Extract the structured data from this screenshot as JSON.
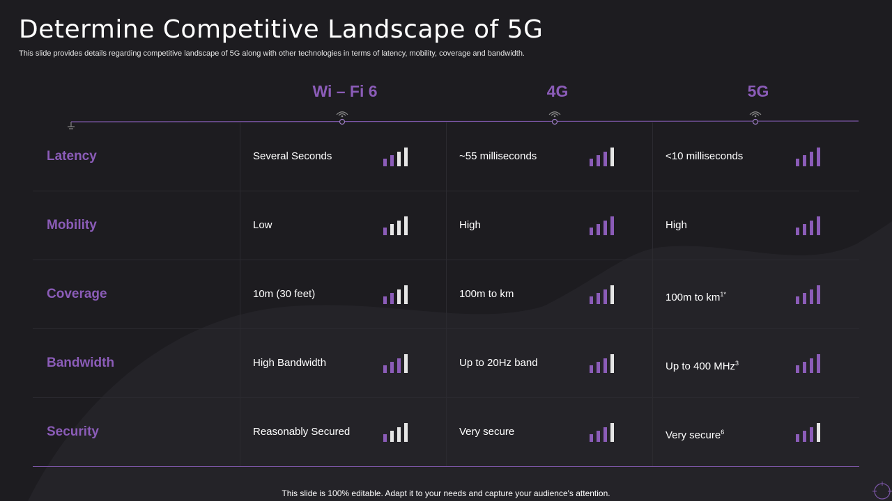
{
  "slide": {
    "title": "Determine Competitive Landscape of 5G",
    "subtitle": "This slide provides details regarding competitive landscape of 5G along with other technologies in terms of latency, mobility, coverage and bandwidth.",
    "footer": "This slide is 100% editable. Adapt it to your needs and capture your audience's attention."
  },
  "colors": {
    "accent": "#8b5cb8",
    "bar_purple": "#8b5cb8",
    "bar_light": "#e6e6e6",
    "background": "#1d1c20"
  },
  "icons": {
    "column_marker": "wifi-signal-icon",
    "timeline_start": "ground-symbol-icon",
    "corner": "target-icon",
    "rating": "signal-bars-icon"
  },
  "columns": [
    {
      "label": "Wi – Fi 6"
    },
    {
      "label": "4G"
    },
    {
      "label": "5G"
    }
  ],
  "rows": [
    {
      "label": "Latency",
      "cells": [
        {
          "text": "Several Seconds",
          "sup": "",
          "purple_bars": 2
        },
        {
          "text": "~55 milliseconds",
          "sup": "",
          "purple_bars": 3
        },
        {
          "text": "<10 milliseconds",
          "sup": "",
          "purple_bars": 4
        }
      ]
    },
    {
      "label": "Mobility",
      "cells": [
        {
          "text": "Low",
          "sup": "",
          "purple_bars": 1
        },
        {
          "text": "High",
          "sup": "",
          "purple_bars": 4
        },
        {
          "text": "High",
          "sup": "",
          "purple_bars": 4
        }
      ]
    },
    {
      "label": "Coverage",
      "cells": [
        {
          "text": "10m (30 feet)",
          "sup": "",
          "purple_bars": 2
        },
        {
          "text": "100m to km",
          "sup": "",
          "purple_bars": 3
        },
        {
          "text": "100m to km",
          "sup": "1*",
          "purple_bars": 4
        }
      ]
    },
    {
      "label": "Bandwidth",
      "cells": [
        {
          "text": "High Bandwidth",
          "sup": "",
          "purple_bars": 3
        },
        {
          "text": "Up to 20Hz band",
          "sup": "",
          "purple_bars": 3
        },
        {
          "text": "Up to 400 MHz",
          "sup": "3",
          "purple_bars": 4
        }
      ]
    },
    {
      "label": "Security",
      "cells": [
        {
          "text": "Reasonably Secured",
          "sup": "",
          "purple_bars": 1
        },
        {
          "text": "Very secure",
          "sup": "",
          "purple_bars": 3
        },
        {
          "text": "Very secure",
          "sup": "6",
          "purple_bars": 3
        }
      ]
    }
  ]
}
